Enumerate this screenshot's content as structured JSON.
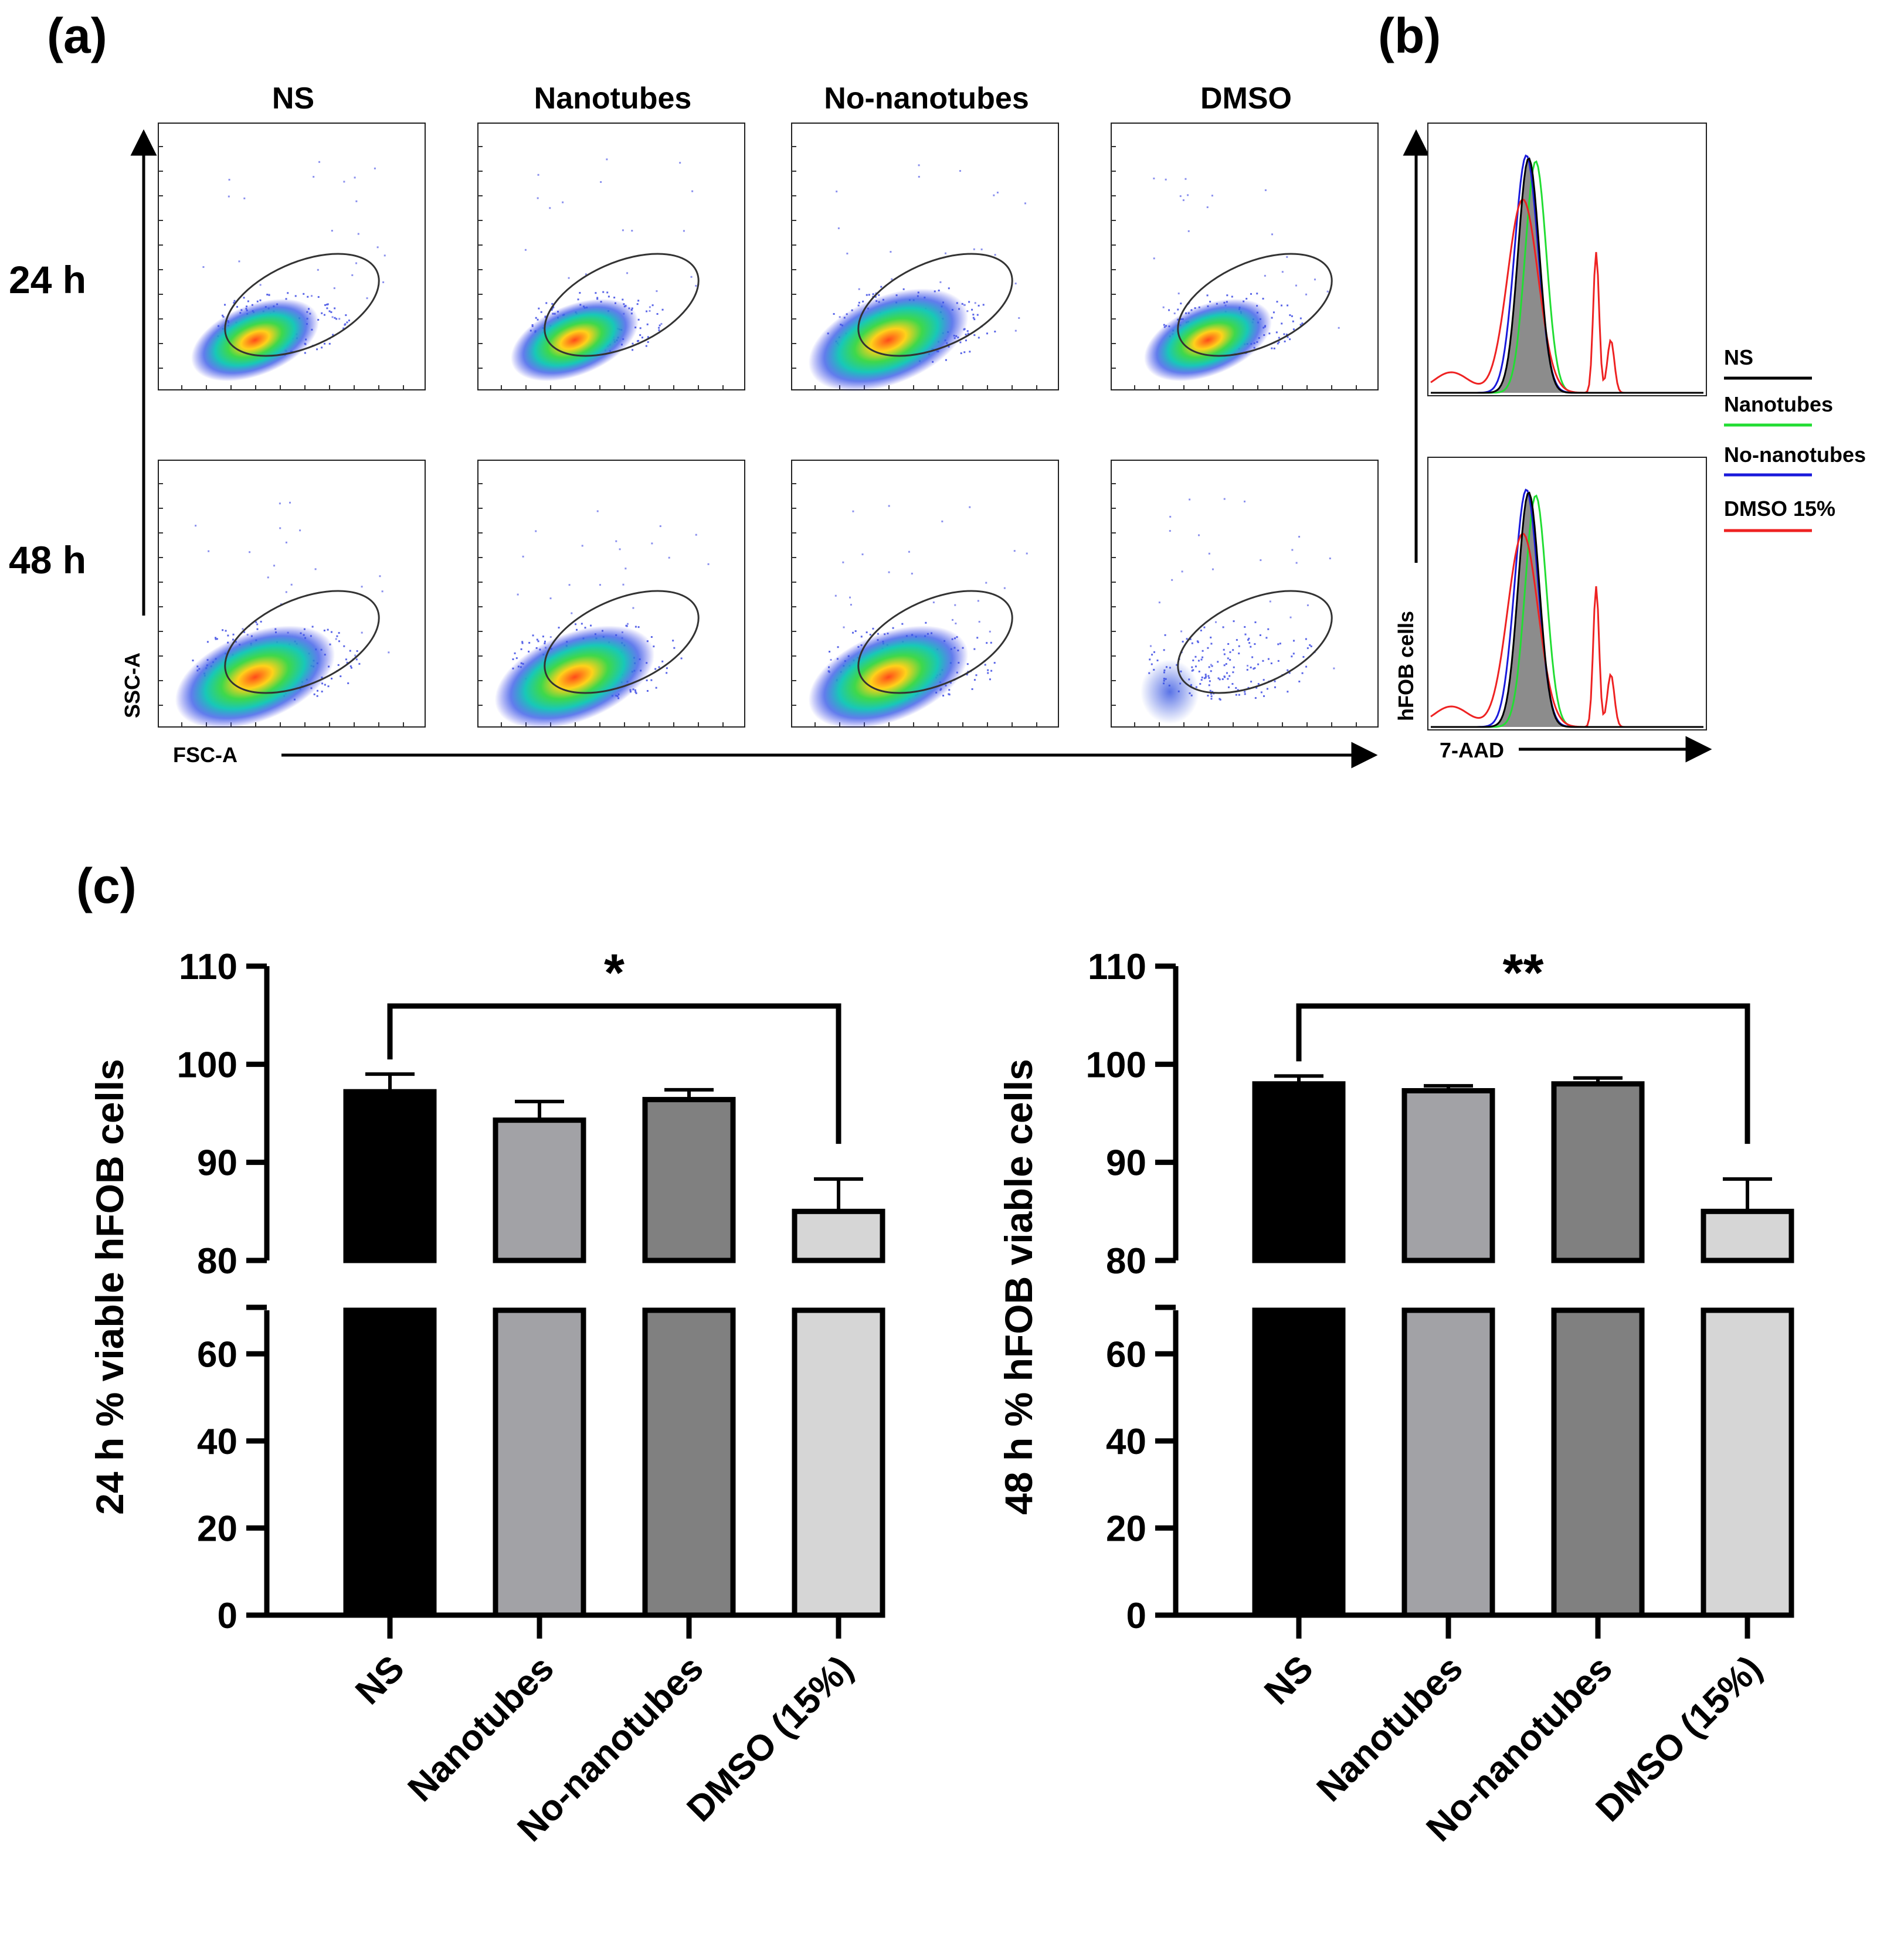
{
  "panels": {
    "a": "(a)",
    "b": "(b)",
    "c": "(c)"
  },
  "flow": {
    "columns": [
      "NS",
      "Nanotubes",
      "No-nanotubes",
      "DMSO"
    ],
    "rows": [
      "24 h",
      "48 h"
    ],
    "x_axis": "FSC-A",
    "y_axis": "SSC-A"
  },
  "histogram": {
    "x_axis": "7-AAD",
    "y_axis": "hFOB cells",
    "legend": [
      {
        "label": "NS",
        "color": "#000000"
      },
      {
        "label": "Nanotubes",
        "color": "#22dd33"
      },
      {
        "label": "No-nanotubes",
        "color": "#1a1adb"
      },
      {
        "label": "DMSO 15%",
        "color": "#ee2222"
      }
    ]
  },
  "chart_data": [
    {
      "type": "bar",
      "title": "",
      "ylabel": "24 h % viable hFOB cells",
      "categories": [
        "NS",
        "Nanotubes",
        "No-nanotubes",
        "DMSO (15%)"
      ],
      "values": [
        97.2,
        94.3,
        96.4,
        85.0
      ],
      "errors": [
        1.8,
        1.9,
        1.0,
        3.3
      ],
      "bar_colors": [
        "#000000",
        "#a2a2a6",
        "#808080",
        "#d6d6d6"
      ],
      "ylim": [
        0,
        110
      ],
      "axis_break": [
        70,
        80
      ],
      "yticks": [
        "0",
        "20",
        "40",
        "60",
        "80",
        "90",
        "100",
        "110"
      ],
      "significance": {
        "from": "NS",
        "to": "DMSO (15%)",
        "label": "*"
      }
    },
    {
      "type": "bar",
      "title": "",
      "ylabel": "48 h % hFOB viable cells",
      "categories": [
        "NS",
        "Nanotubes",
        "No-nanotubes",
        "DMSO (15%)"
      ],
      "values": [
        98.0,
        97.3,
        98.0,
        85.0
      ],
      "errors": [
        0.8,
        0.5,
        0.6,
        3.3
      ],
      "bar_colors": [
        "#000000",
        "#a2a2a6",
        "#808080",
        "#d6d6d6"
      ],
      "ylim": [
        0,
        110
      ],
      "axis_break": [
        70,
        80
      ],
      "yticks": [
        "0",
        "20",
        "40",
        "60",
        "80",
        "90",
        "100",
        "110"
      ],
      "significance": {
        "from": "NS",
        "to": "DMSO (15%)",
        "label": "**"
      }
    }
  ]
}
